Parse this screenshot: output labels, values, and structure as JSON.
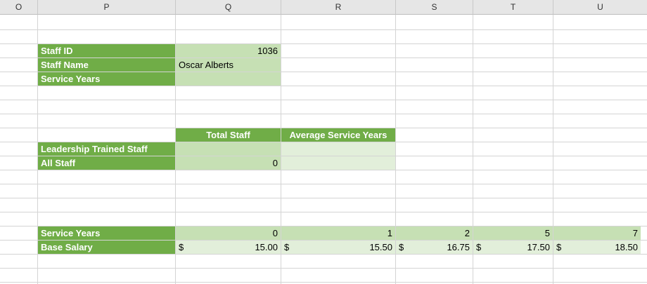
{
  "columns": [
    "O",
    "P",
    "Q",
    "R",
    "S",
    "T",
    "U"
  ],
  "staff_lookup": {
    "id_label": "Staff ID",
    "id_value": "1036",
    "name_label": "Staff Name",
    "name_value": "Oscar Alberts",
    "years_label": "Service Years",
    "years_value": ""
  },
  "summary": {
    "col_total": "Total Staff",
    "col_avg": "Average Service Years",
    "row_leadership": "Leadership Trained Staff",
    "row_all": "All Staff",
    "leadership_total": "",
    "leadership_avg": "",
    "all_total": "0",
    "all_avg": ""
  },
  "salary_table": {
    "years_label": "Service Years",
    "salary_label": "Base Salary",
    "currency": "$",
    "years": [
      "0",
      "1",
      "2",
      "5",
      "7"
    ],
    "salaries": [
      "15.00",
      "15.50",
      "16.75",
      "17.50",
      "18.50"
    ]
  },
  "colors": {
    "header_green": "#70ad47",
    "input_green": "#c6e0b4",
    "light_green": "#e2efda",
    "gridline": "#d4d4d4"
  }
}
